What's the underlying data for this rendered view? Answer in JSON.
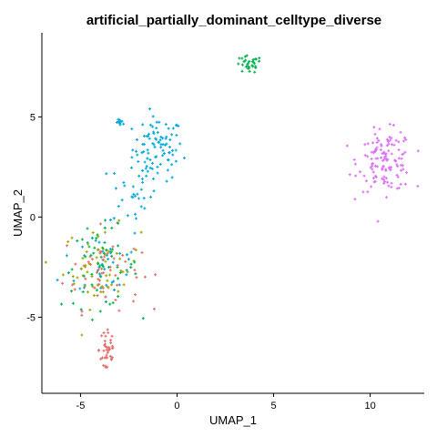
{
  "chart_data": {
    "type": "scatter",
    "title": "artificial_partially_dominant_celltype_diverse",
    "xlabel": "UMAP_1",
    "ylabel": "UMAP_2",
    "xlim": [
      -7.0,
      12.8
    ],
    "ylim": [
      -8.8,
      9.2
    ],
    "x_ticks": [
      -5,
      0,
      5,
      10
    ],
    "y_ticks": [
      -5,
      0,
      5
    ],
    "x_tick_labels": [
      "-5",
      "0",
      "5",
      "10"
    ],
    "y_tick_labels": [
      "-5",
      "0",
      "5"
    ],
    "grid": false,
    "legend": "none",
    "colors": [
      "#00A9DB",
      "#E36E6A",
      "#A3A500",
      "#00B34C",
      "#DB72FB"
    ],
    "clusters": [
      {
        "color": 0,
        "cx": -1.0,
        "cy": 3.4,
        "sx": 0.65,
        "sy": 0.8,
        "n": 90
      },
      {
        "color": 0,
        "cx": -2.9,
        "cy": 4.7,
        "sx": 0.12,
        "sy": 0.08,
        "n": 10
      },
      {
        "color": 0,
        "cx": -2.4,
        "cy": 1.2,
        "sx": 0.55,
        "sy": 0.9,
        "n": 30
      },
      {
        "color": 0,
        "cx": -3.8,
        "cy": -2.3,
        "sx": 1.1,
        "sy": 1.0,
        "n": 40
      },
      {
        "color": 1,
        "cx": -3.9,
        "cy": -2.6,
        "sx": 1.0,
        "sy": 1.0,
        "n": 55
      },
      {
        "color": 2,
        "cx": -3.9,
        "cy": -2.5,
        "sx": 1.0,
        "sy": 1.0,
        "n": 55
      },
      {
        "color": 3,
        "cx": -4.0,
        "cy": -2.5,
        "sx": 1.0,
        "sy": 1.0,
        "n": 55
      },
      {
        "color": 1,
        "cx": -3.6,
        "cy": -6.6,
        "sx": 0.22,
        "sy": 0.8,
        "n": 40
      },
      {
        "color": 3,
        "cx": 3.7,
        "cy": 7.6,
        "sx": 0.35,
        "sy": 0.22,
        "n": 32
      },
      {
        "color": 4,
        "cx": 10.8,
        "cy": 2.8,
        "sx": 0.7,
        "sy": 0.75,
        "n": 130
      }
    ]
  }
}
